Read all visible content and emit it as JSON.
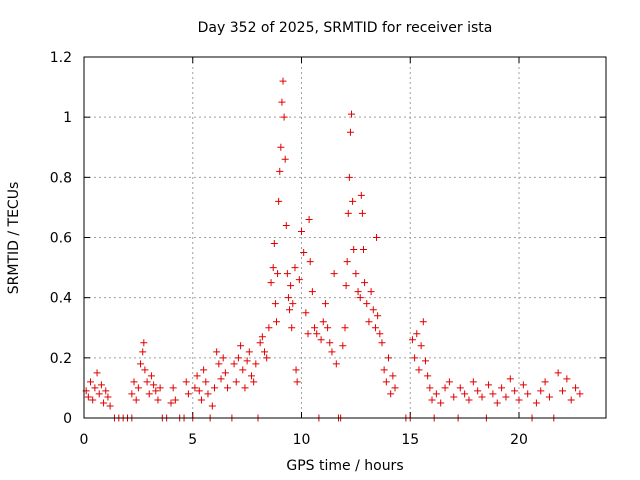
{
  "chart_data": {
    "type": "scatter",
    "title": "Day 352 of 2025, SRMTID for receiver ista",
    "xlabel": "GPS time / hours",
    "ylabel": "SRMTID / TECUs",
    "xlim": [
      0,
      24
    ],
    "ylim": [
      0,
      1.2
    ],
    "xticks": [
      0,
      5,
      10,
      15,
      20
    ],
    "xtick_labels": [
      "0",
      "5",
      "10",
      "15",
      "20"
    ],
    "yticks": [
      0,
      0.2,
      0.4,
      0.6,
      0.8,
      1.0,
      1.2
    ],
    "ytick_labels": [
      "0",
      "0.2",
      "0.4",
      "0.6",
      "0.8",
      "1",
      "1.2"
    ],
    "grid": true,
    "marker": "+",
    "series": [
      {
        "name": "SRMTID",
        "color": "#e00000",
        "points": [
          [
            0.1,
            0.09
          ],
          [
            0.2,
            0.07
          ],
          [
            0.3,
            0.12
          ],
          [
            0.4,
            0.06
          ],
          [
            0.5,
            0.1
          ],
          [
            0.6,
            0.15
          ],
          [
            0.7,
            0.08
          ],
          [
            0.8,
            0.11
          ],
          [
            0.9,
            0.05
          ],
          [
            1.0,
            0.09
          ],
          [
            1.1,
            0.07
          ],
          [
            1.2,
            0.04
          ],
          [
            1.4,
            0.0
          ],
          [
            1.6,
            0.0
          ],
          [
            1.8,
            0.0
          ],
          [
            2.0,
            0.0
          ],
          [
            2.2,
            0.0
          ],
          [
            2.2,
            0.08
          ],
          [
            2.3,
            0.12
          ],
          [
            2.4,
            0.06
          ],
          [
            2.5,
            0.1
          ],
          [
            2.6,
            0.18
          ],
          [
            2.7,
            0.22
          ],
          [
            2.75,
            0.25
          ],
          [
            2.8,
            0.16
          ],
          [
            2.9,
            0.12
          ],
          [
            3.0,
            0.08
          ],
          [
            3.1,
            0.14
          ],
          [
            3.2,
            0.11
          ],
          [
            3.3,
            0.09
          ],
          [
            3.4,
            0.06
          ],
          [
            3.5,
            0.1
          ],
          [
            3.6,
            0.0
          ],
          [
            3.8,
            0.0
          ],
          [
            4.0,
            0.05
          ],
          [
            4.1,
            0.1
          ],
          [
            4.2,
            0.06
          ],
          [
            4.4,
            0.0
          ],
          [
            4.6,
            0.0
          ],
          [
            4.7,
            0.12
          ],
          [
            4.8,
            0.08
          ],
          [
            5.0,
            0.0
          ],
          [
            5.1,
            0.1
          ],
          [
            5.2,
            0.14
          ],
          [
            5.3,
            0.09
          ],
          [
            5.4,
            0.06
          ],
          [
            5.5,
            0.16
          ],
          [
            5.6,
            0.12
          ],
          [
            5.7,
            0.08
          ],
          [
            5.8,
            0.0
          ],
          [
            5.9,
            0.04
          ],
          [
            6.0,
            0.1
          ],
          [
            6.1,
            0.22
          ],
          [
            6.2,
            0.18
          ],
          [
            6.3,
            0.13
          ],
          [
            6.4,
            0.2
          ],
          [
            6.5,
            0.15
          ],
          [
            6.6,
            0.1
          ],
          [
            6.8,
            0.0
          ],
          [
            6.9,
            0.18
          ],
          [
            7.0,
            0.12
          ],
          [
            7.1,
            0.2
          ],
          [
            7.2,
            0.24
          ],
          [
            7.3,
            0.16
          ],
          [
            7.4,
            0.1
          ],
          [
            7.5,
            0.19
          ],
          [
            7.6,
            0.22
          ],
          [
            7.7,
            0.14
          ],
          [
            7.8,
            0.12
          ],
          [
            7.9,
            0.18
          ],
          [
            8.0,
            0.0
          ],
          [
            8.1,
            0.25
          ],
          [
            8.2,
            0.27
          ],
          [
            8.3,
            0.22
          ],
          [
            8.4,
            0.2
          ],
          [
            8.5,
            0.3
          ],
          [
            8.6,
            0.45
          ],
          [
            8.7,
            0.5
          ],
          [
            8.75,
            0.58
          ],
          [
            8.8,
            0.38
          ],
          [
            8.85,
            0.32
          ],
          [
            8.9,
            0.48
          ],
          [
            8.95,
            0.72
          ],
          [
            9.0,
            0.82
          ],
          [
            9.05,
            0.9
          ],
          [
            9.1,
            1.05
          ],
          [
            9.15,
            1.12
          ],
          [
            9.2,
            1.0
          ],
          [
            9.25,
            0.86
          ],
          [
            9.3,
            0.64
          ],
          [
            9.35,
            0.48
          ],
          [
            9.4,
            0.4
          ],
          [
            9.45,
            0.36
          ],
          [
            9.5,
            0.44
          ],
          [
            9.55,
            0.3
          ],
          [
            9.6,
            0.38
          ],
          [
            9.7,
            0.5
          ],
          [
            9.75,
            0.16
          ],
          [
            9.8,
            0.12
          ],
          [
            9.9,
            0.46
          ],
          [
            10.0,
            0.62
          ],
          [
            10.1,
            0.55
          ],
          [
            10.2,
            0.35
          ],
          [
            10.3,
            0.28
          ],
          [
            10.35,
            0.66
          ],
          [
            10.4,
            0.52
          ],
          [
            10.5,
            0.42
          ],
          [
            10.6,
            0.3
          ],
          [
            10.7,
            0.28
          ],
          [
            10.8,
            0.0
          ],
          [
            10.9,
            0.26
          ],
          [
            11.0,
            0.32
          ],
          [
            11.1,
            0.38
          ],
          [
            11.2,
            0.3
          ],
          [
            11.3,
            0.25
          ],
          [
            11.4,
            0.22
          ],
          [
            11.5,
            0.48
          ],
          [
            11.6,
            0.18
          ],
          [
            11.7,
            0.0
          ],
          [
            11.8,
            0.0
          ],
          [
            11.9,
            0.24
          ],
          [
            12.0,
            0.3
          ],
          [
            12.05,
            0.44
          ],
          [
            12.1,
            0.52
          ],
          [
            12.15,
            0.68
          ],
          [
            12.2,
            0.8
          ],
          [
            12.25,
            0.95
          ],
          [
            12.3,
            1.01
          ],
          [
            12.35,
            0.72
          ],
          [
            12.4,
            0.56
          ],
          [
            12.5,
            0.48
          ],
          [
            12.6,
            0.42
          ],
          [
            12.7,
            0.4
          ],
          [
            12.75,
            0.74
          ],
          [
            12.8,
            0.68
          ],
          [
            12.85,
            0.56
          ],
          [
            12.9,
            0.45
          ],
          [
            13.0,
            0.38
          ],
          [
            13.1,
            0.32
          ],
          [
            13.2,
            0.42
          ],
          [
            13.3,
            0.36
          ],
          [
            13.4,
            0.3
          ],
          [
            13.45,
            0.6
          ],
          [
            13.5,
            0.34
          ],
          [
            13.6,
            0.28
          ],
          [
            13.7,
            0.25
          ],
          [
            13.8,
            0.16
          ],
          [
            13.9,
            0.12
          ],
          [
            14.0,
            0.2
          ],
          [
            14.1,
            0.08
          ],
          [
            14.2,
            0.14
          ],
          [
            14.3,
            0.1
          ],
          [
            14.8,
            0.0
          ],
          [
            15.0,
            0.0
          ],
          [
            15.1,
            0.26
          ],
          [
            15.2,
            0.2
          ],
          [
            15.3,
            0.28
          ],
          [
            15.4,
            0.16
          ],
          [
            15.5,
            0.24
          ],
          [
            15.6,
            0.32
          ],
          [
            15.7,
            0.19
          ],
          [
            15.8,
            0.14
          ],
          [
            15.9,
            0.1
          ],
          [
            16.0,
            0.06
          ],
          [
            16.1,
            0.0
          ],
          [
            16.2,
            0.08
          ],
          [
            16.4,
            0.05
          ],
          [
            16.6,
            0.1
          ],
          [
            16.8,
            0.12
          ],
          [
            17.0,
            0.07
          ],
          [
            17.2,
            0.0
          ],
          [
            17.3,
            0.1
          ],
          [
            17.5,
            0.08
          ],
          [
            17.7,
            0.06
          ],
          [
            17.9,
            0.12
          ],
          [
            18.1,
            0.09
          ],
          [
            18.3,
            0.07
          ],
          [
            18.5,
            0.0
          ],
          [
            18.6,
            0.11
          ],
          [
            18.8,
            0.08
          ],
          [
            19.0,
            0.05
          ],
          [
            19.2,
            0.1
          ],
          [
            19.4,
            0.07
          ],
          [
            19.6,
            0.13
          ],
          [
            19.8,
            0.09
          ],
          [
            20.0,
            0.06
          ],
          [
            20.2,
            0.11
          ],
          [
            20.4,
            0.08
          ],
          [
            20.6,
            0.0
          ],
          [
            20.8,
            0.05
          ],
          [
            21.0,
            0.09
          ],
          [
            21.2,
            0.12
          ],
          [
            21.4,
            0.07
          ],
          [
            21.6,
            0.0
          ],
          [
            21.8,
            0.15
          ],
          [
            22.0,
            0.09
          ],
          [
            22.2,
            0.13
          ],
          [
            22.4,
            0.06
          ],
          [
            22.6,
            0.1
          ],
          [
            22.8,
            0.08
          ]
        ]
      }
    ]
  }
}
